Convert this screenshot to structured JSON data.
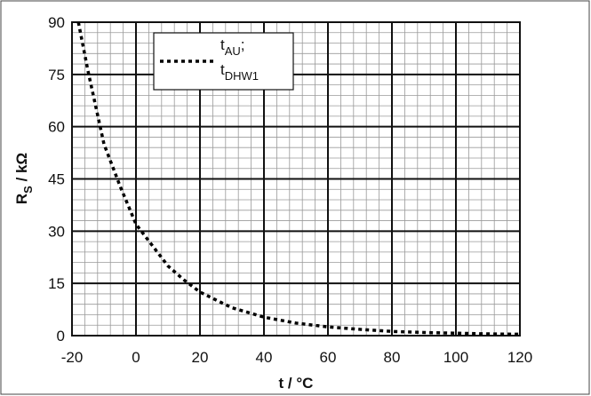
{
  "chart_data": {
    "type": "line",
    "xlabel": {
      "main": "t",
      "suffix": "  /  °C"
    },
    "ylabel": {
      "main": "R",
      "sub": "S",
      "suffix": "  /  kΩ"
    },
    "legend_lines": [
      {
        "main": "t",
        "sub": "AU",
        "suffix": ";"
      },
      {
        "main": "t",
        "sub": "DHW1"
      }
    ],
    "x": [
      -18,
      -15,
      -10,
      -5,
      0,
      5,
      10,
      15,
      20,
      30,
      40,
      50,
      60,
      70,
      80,
      90,
      100,
      110,
      120
    ],
    "series": [
      {
        "color": "#000000",
        "values": [
          90,
          76,
          55,
          43,
          32,
          26,
          20,
          16,
          12.5,
          8,
          5.3,
          3.6,
          2.5,
          1.8,
          1.2,
          0.9,
          0.7,
          0.5,
          0.4
        ]
      }
    ],
    "xlim": [
      -20,
      120
    ],
    "xticks": [
      -20,
      0,
      20,
      40,
      60,
      80,
      100,
      120
    ],
    "ylim": [
      0,
      90
    ],
    "yticks": [
      0,
      15,
      30,
      45,
      60,
      75,
      90
    ],
    "xminor_step": 4,
    "yminor_step": 3,
    "grid": true
  }
}
